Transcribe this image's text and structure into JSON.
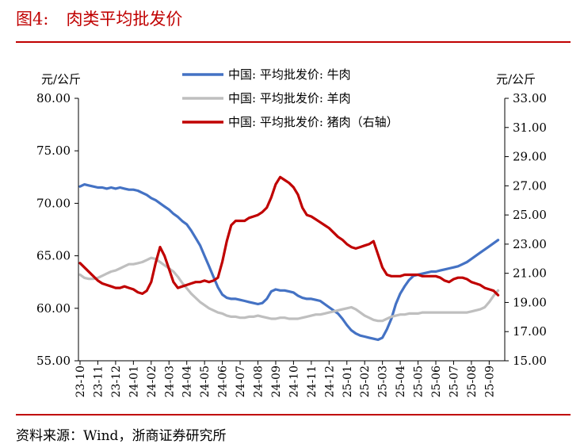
{
  "figure": {
    "number": "图4:",
    "title": "肉类平均批发价",
    "source": "资料来源：Wind，浙商证券研究所"
  },
  "colors": {
    "title": "#c00000",
    "beef": "#4472c4",
    "mutton": "#bfbfbf",
    "pork": "#c00000"
  },
  "chart_data": {
    "type": "line",
    "left_axis": {
      "unit": "元/公斤",
      "ylim": [
        55,
        80
      ],
      "ticks": [
        "55.00",
        "60.00",
        "65.00",
        "70.00",
        "75.00",
        "80.00"
      ]
    },
    "right_axis": {
      "unit": "元/公斤",
      "ylim": [
        15,
        33
      ],
      "ticks": [
        "15.00",
        "17.00",
        "19.00",
        "21.00",
        "23.00",
        "25.00",
        "27.00",
        "29.00",
        "31.00",
        "33.00"
      ]
    },
    "x_ticks": [
      "23-10",
      "23-11",
      "23-12",
      "24-01",
      "24-02",
      "24-03",
      "24-04",
      "24-05",
      "24-06",
      "24-07",
      "24-08",
      "24-09",
      "24-10",
      "24-11",
      "24-12",
      "25-01",
      "25-02",
      "25-03",
      "25-04",
      "25-05",
      "25-06",
      "25-07",
      "25-08",
      "25-09"
    ],
    "x_months": [
      0,
      1,
      2,
      3,
      4,
      5,
      6,
      7,
      8,
      9,
      10,
      11,
      12,
      13,
      14,
      15,
      16,
      17,
      18,
      19,
      20,
      21,
      22,
      23
    ],
    "grid": false,
    "legend_position": "top-center",
    "series": [
      {
        "name": "中国: 平均批发价: 牛肉",
        "axis": "left",
        "x": [
          0,
          0.25,
          0.5,
          0.75,
          1,
          1.25,
          1.5,
          1.75,
          2,
          2.25,
          2.5,
          2.75,
          3,
          3.25,
          3.5,
          3.75,
          4,
          4.25,
          4.5,
          4.75,
          5,
          5.25,
          5.5,
          5.75,
          6,
          6.25,
          6.5,
          6.75,
          7,
          7.25,
          7.5,
          7.75,
          8,
          8.25,
          8.5,
          8.75,
          9,
          9.25,
          9.5,
          9.75,
          10,
          10.25,
          10.5,
          10.75,
          11,
          11.25,
          11.5,
          11.75,
          12,
          12.25,
          12.5,
          12.75,
          13,
          13.25,
          13.5,
          13.75,
          14,
          14.25,
          14.5,
          14.75,
          15,
          15.25,
          15.5,
          15.75,
          16,
          16.25,
          16.5,
          16.75,
          17,
          17.25,
          17.5,
          17.75,
          18,
          18.25,
          18.5,
          18.75,
          19,
          19.25,
          19.5,
          19.75,
          20,
          20.25,
          20.5,
          20.75,
          21,
          21.25,
          21.5,
          21.75,
          22,
          22.25,
          22.5,
          22.75,
          23,
          23.25,
          23.5
        ],
        "values": [
          71.6,
          71.8,
          71.7,
          71.6,
          71.5,
          71.5,
          71.4,
          71.5,
          71.4,
          71.5,
          71.4,
          71.3,
          71.3,
          71.2,
          71.0,
          70.8,
          70.5,
          70.3,
          70.0,
          69.7,
          69.4,
          69.0,
          68.7,
          68.3,
          68.0,
          67.4,
          66.7,
          66.0,
          65.0,
          64.0,
          63.0,
          62.0,
          61.3,
          61.0,
          60.9,
          60.9,
          60.8,
          60.7,
          60.6,
          60.5,
          60.4,
          60.5,
          60.9,
          61.6,
          61.8,
          61.7,
          61.7,
          61.6,
          61.5,
          61.2,
          61.0,
          60.9,
          60.9,
          60.8,
          60.7,
          60.4,
          60.1,
          59.8,
          59.5,
          59.0,
          58.4,
          57.9,
          57.6,
          57.4,
          57.3,
          57.2,
          57.1,
          57.0,
          57.2,
          58.0,
          59.0,
          60.4,
          61.4,
          62.1,
          62.7,
          63.1,
          63.2,
          63.3,
          63.4,
          63.5,
          63.5,
          63.6,
          63.7,
          63.8,
          63.9,
          64.0,
          64.2,
          64.4,
          64.7,
          65.0,
          65.3,
          65.6,
          65.9,
          66.2,
          66.5
        ]
      },
      {
        "name": "中国: 平均批发价: 羊肉",
        "axis": "left",
        "x": [
          0,
          0.25,
          0.5,
          0.75,
          1,
          1.25,
          1.5,
          1.75,
          2,
          2.25,
          2.5,
          2.75,
          3,
          3.25,
          3.5,
          3.75,
          4,
          4.25,
          4.5,
          4.75,
          5,
          5.25,
          5.5,
          5.75,
          6,
          6.25,
          6.5,
          6.75,
          7,
          7.25,
          7.5,
          7.75,
          8,
          8.25,
          8.5,
          8.75,
          9,
          9.25,
          9.5,
          9.75,
          10,
          10.25,
          10.5,
          10.75,
          11,
          11.25,
          11.5,
          11.75,
          12,
          12.25,
          12.5,
          12.75,
          13,
          13.25,
          13.5,
          13.75,
          14,
          14.25,
          14.5,
          14.75,
          15,
          15.25,
          15.5,
          15.75,
          16,
          16.25,
          16.5,
          16.75,
          17,
          17.25,
          17.5,
          17.75,
          18,
          18.25,
          18.5,
          18.75,
          19,
          19.25,
          19.5,
          19.75,
          20,
          20.25,
          20.5,
          20.75,
          21,
          21.25,
          21.5,
          21.75,
          22,
          22.25,
          22.5,
          22.75,
          23,
          23.25,
          23.5
        ],
        "values": [
          63.2,
          62.9,
          62.8,
          62.8,
          62.9,
          63.1,
          63.3,
          63.5,
          63.6,
          63.8,
          64.0,
          64.2,
          64.2,
          64.3,
          64.4,
          64.6,
          64.8,
          64.7,
          64.4,
          64.1,
          63.8,
          63.5,
          63.0,
          62.4,
          61.9,
          61.4,
          61.0,
          60.6,
          60.3,
          60.0,
          59.8,
          59.6,
          59.5,
          59.3,
          59.2,
          59.2,
          59.1,
          59.1,
          59.2,
          59.2,
          59.3,
          59.2,
          59.1,
          59.0,
          59.0,
          59.1,
          59.1,
          59.0,
          59.0,
          59.0,
          59.1,
          59.2,
          59.3,
          59.4,
          59.4,
          59.5,
          59.6,
          59.7,
          59.8,
          59.9,
          60.0,
          60.1,
          59.9,
          59.6,
          59.3,
          59.1,
          58.9,
          58.8,
          58.8,
          59.0,
          59.2,
          59.3,
          59.4,
          59.4,
          59.5,
          59.5,
          59.5,
          59.6,
          59.6,
          59.6,
          59.6,
          59.6,
          59.6,
          59.6,
          59.6,
          59.6,
          59.6,
          59.6,
          59.7,
          59.8,
          59.9,
          60.1,
          60.6,
          61.2,
          61.7
        ]
      },
      {
        "name": "中国: 平均批发价: 猪肉（右轴）",
        "axis": "right",
        "x": [
          0,
          0.25,
          0.5,
          0.75,
          1,
          1.25,
          1.5,
          1.75,
          2,
          2.25,
          2.5,
          2.75,
          3,
          3.25,
          3.5,
          3.75,
          4,
          4.25,
          4.5,
          4.75,
          5,
          5.25,
          5.5,
          5.75,
          6,
          6.25,
          6.5,
          6.75,
          7,
          7.25,
          7.5,
          7.75,
          8,
          8.25,
          8.5,
          8.75,
          9,
          9.25,
          9.5,
          9.75,
          10,
          10.25,
          10.5,
          10.75,
          11,
          11.25,
          11.5,
          11.75,
          12,
          12.25,
          12.5,
          12.75,
          13,
          13.25,
          13.5,
          13.75,
          14,
          14.25,
          14.5,
          14.75,
          15,
          15.25,
          15.5,
          15.75,
          16,
          16.25,
          16.5,
          16.75,
          17,
          17.25,
          17.5,
          17.75,
          18,
          18.25,
          18.5,
          18.75,
          19,
          19.25,
          19.5,
          19.75,
          20,
          20.25,
          20.5,
          20.75,
          21,
          21.25,
          21.5,
          21.75,
          22,
          22.25,
          22.5,
          22.75,
          23,
          23.25,
          23.5
        ],
        "values": [
          21.7,
          21.4,
          21.1,
          20.8,
          20.5,
          20.3,
          20.2,
          20.1,
          20.0,
          20.0,
          20.1,
          20.0,
          19.9,
          19.7,
          19.6,
          19.8,
          20.4,
          21.7,
          22.8,
          22.2,
          21.3,
          20.4,
          20.0,
          20.1,
          20.2,
          20.3,
          20.4,
          20.4,
          20.5,
          20.4,
          20.5,
          20.7,
          21.8,
          23.2,
          24.3,
          24.6,
          24.6,
          24.6,
          24.8,
          24.9,
          25.0,
          25.2,
          25.5,
          26.2,
          27.1,
          27.6,
          27.4,
          27.2,
          26.9,
          26.4,
          25.5,
          25.0,
          24.9,
          24.7,
          24.5,
          24.3,
          24.1,
          23.8,
          23.5,
          23.3,
          23.0,
          22.8,
          22.7,
          22.8,
          22.9,
          23.0,
          23.2,
          22.3,
          21.4,
          20.9,
          20.8,
          20.8,
          20.8,
          20.9,
          20.9,
          20.9,
          20.9,
          20.8,
          20.8,
          20.8,
          20.8,
          20.7,
          20.5,
          20.4,
          20.6,
          20.7,
          20.7,
          20.6,
          20.4,
          20.3,
          20.2,
          20.0,
          19.9,
          19.8,
          19.5
        ]
      }
    ]
  }
}
